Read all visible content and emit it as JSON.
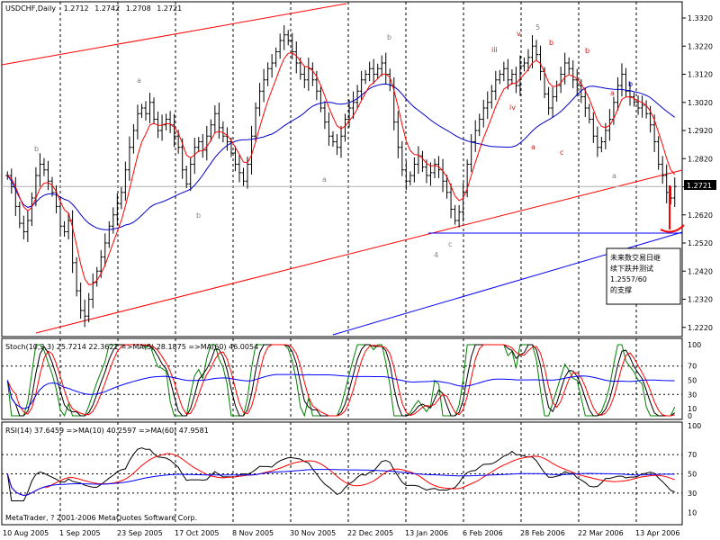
{
  "chart_data": [
    {
      "type": "ohlc",
      "title": "USDCHF,Daily",
      "ohlc": {
        "open": "1.2712",
        "high": "1.2742",
        "low": "1.2708",
        "close": "1.2721"
      },
      "current_price_label": "1.2721",
      "ylim": [
        1.22,
        1.332
      ],
      "y_ticks": [
        "1.3320",
        "1.3220",
        "1.3120",
        "1.3020",
        "1.2920",
        "1.2820",
        "1.2720",
        "1.2620",
        "1.2520",
        "1.2420",
        "1.2320",
        "1.2220"
      ],
      "x_labels": [
        "10 Aug 2005",
        "1 Sep 2005",
        "23 Sep 2005",
        "17 Oct 2005",
        "8 Nov 2005",
        "30 Nov 2005",
        "22 Dec 2005",
        "13 Jan 2006",
        "6 Feb 2006",
        "28 Feb 2006",
        "22 Mar 2006",
        "13 Apr 2006"
      ],
      "closes": [
        1.276,
        1.272,
        1.265,
        1.259,
        1.256,
        1.26,
        1.268,
        1.276,
        1.28,
        1.278,
        1.274,
        1.27,
        1.265,
        1.258,
        1.256,
        1.26,
        1.245,
        1.235,
        1.228,
        1.226,
        1.232,
        1.238,
        1.242,
        1.247,
        1.252,
        1.258,
        1.262,
        1.266,
        1.27,
        1.278,
        1.286,
        1.292,
        1.298,
        1.3,
        1.298,
        1.302,
        1.296,
        1.292,
        1.294,
        1.296,
        1.294,
        1.29,
        1.286,
        1.278,
        1.273,
        1.28,
        1.286,
        1.288,
        1.285,
        1.29,
        1.294,
        1.298,
        1.293,
        1.29,
        1.288,
        1.284,
        1.28,
        1.277,
        1.274,
        1.28,
        1.29,
        1.3,
        1.306,
        1.31,
        1.314,
        1.316,
        1.32,
        1.324,
        1.326,
        1.324,
        1.32,
        1.316,
        1.312,
        1.31,
        1.314,
        1.31,
        1.306,
        1.3,
        1.295,
        1.29,
        1.288,
        1.286,
        1.29,
        1.296,
        1.3,
        1.302,
        1.306,
        1.31,
        1.312,
        1.314,
        1.312,
        1.314,
        1.316,
        1.312,
        1.308,
        1.295,
        1.286,
        1.278,
        1.274,
        1.276,
        1.28,
        1.283,
        1.279,
        1.276,
        1.277,
        1.28,
        1.278,
        1.274,
        1.27,
        1.264,
        1.26,
        1.263,
        1.27,
        1.28,
        1.288,
        1.292,
        1.296,
        1.3,
        1.302,
        1.306,
        1.31,
        1.312,
        1.314,
        1.31,
        1.312,
        1.308,
        1.315,
        1.316,
        1.318,
        1.322,
        1.319,
        1.313,
        1.305,
        1.3,
        1.304,
        1.308,
        1.312,
        1.316,
        1.314,
        1.31,
        1.308,
        1.304,
        1.3,
        1.296,
        1.29,
        1.286,
        1.288,
        1.292,
        1.296,
        1.302,
        1.308,
        1.312,
        1.306,
        1.304,
        1.302,
        1.3,
        1.301,
        1.298,
        1.294,
        1.288,
        1.28,
        1.276,
        1.27,
        1.268,
        1.2721
      ],
      "main_annotations": [
        "b",
        "a",
        "b",
        "a",
        "b",
        "c",
        "4",
        "iii",
        "iv",
        "v",
        "5",
        "a",
        "b",
        "c",
        "b",
        "a",
        "b",
        "a"
      ],
      "callout_text": "未来数交易日继续下跌并测试1.2557/60的支撑",
      "horizontal_levels": [
        1.2721,
        1.2557
      ]
    },
    {
      "type": "line",
      "title": "Stoch(10,3,3) 25.7214 22.3621 =>MA(5) 28.1875 =>MA(60) 46.0054",
      "ylim": [
        0,
        100
      ],
      "y_ticks": [
        "100",
        "70",
        "50",
        "30",
        "10",
        "0"
      ],
      "series": [
        {
          "name": "Stoch(10,3,3)",
          "color": "#008000"
        },
        {
          "name": "MA(5)",
          "color": "#ff0000"
        },
        {
          "name": "MA(60)",
          "color": "#0000ff"
        }
      ],
      "latest": [
        25.7214,
        22.3621,
        28.1875,
        46.0054
      ]
    },
    {
      "type": "line",
      "title": "RSI(14) 37.6459 =>MA(10) 40.2597 =>MA(60) 47.9581",
      "ylim": [
        0,
        100
      ],
      "y_ticks": [
        "100",
        "70",
        "50",
        "30",
        "10"
      ],
      "series": [
        {
          "name": "RSI(14)",
          "color": "#000000"
        },
        {
          "name": "MA(10)",
          "color": "#ff0000"
        },
        {
          "name": "MA(60)",
          "color": "#0000ff"
        }
      ],
      "latest": [
        37.6459,
        40.2597,
        47.9581
      ]
    }
  ],
  "footer": "MetaTrader, ? 2001-2006 MetaQuotes Software Corp."
}
